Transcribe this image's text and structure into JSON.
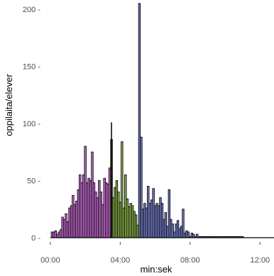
{
  "chart_data": {
    "type": "bar",
    "xlabel": "min:sek",
    "ylabel": "oppilaita/elever",
    "xlim": [
      -0.2,
      12.8
    ],
    "ylim": [
      0,
      208
    ],
    "x_ticks": [
      0,
      4,
      8,
      12
    ],
    "x_tick_labels": [
      "00:00",
      "04:00",
      "08:00",
      "12:00"
    ],
    "y_ticks": [
      0,
      50,
      100,
      150,
      200
    ],
    "y_tick_labels": [
      "0 -",
      "50 -",
      "100 -",
      "150 -",
      "200 -"
    ],
    "bin_width_minutes": 0.1,
    "reference_line_x": 3.5,
    "reference_line_top": 101,
    "series": [
      {
        "color": "#cc6fd6",
        "x": [
          0.1,
          0.2,
          0.3,
          0.4,
          0.5,
          0.6,
          0.7,
          0.8,
          0.9,
          1.0,
          1.1,
          1.2,
          1.3,
          1.4,
          1.5,
          1.6,
          1.7,
          1.8,
          1.9,
          2.0,
          2.1,
          2.2,
          2.3,
          2.4,
          2.5,
          2.6,
          2.7,
          2.8,
          2.9,
          3.0,
          3.1,
          3.2,
          3.3,
          3.4
        ],
        "values": [
          5,
          5,
          6,
          3,
          5,
          7,
          18,
          16,
          21,
          14,
          26,
          28,
          37,
          29,
          32,
          42,
          55,
          48,
          55,
          80,
          48,
          52,
          50,
          75,
          48,
          40,
          35,
          50,
          40,
          29,
          52,
          48,
          47,
          61
        ]
      },
      {
        "color": "#8fb84a",
        "x": [
          3.5,
          3.6,
          3.7,
          3.8,
          3.9,
          4.0,
          4.1,
          4.2,
          4.3,
          4.4,
          4.5,
          4.6,
          4.7,
          4.8,
          4.9,
          5.0
        ],
        "values": [
          86,
          35,
          44,
          50,
          40,
          31,
          84,
          26,
          55,
          34,
          27,
          30,
          28,
          23,
          20,
          11
        ]
      },
      {
        "color": "#7b83cf",
        "x": [
          5.1,
          5.2,
          5.3,
          5.4,
          5.5,
          5.6,
          5.7,
          5.8,
          5.9,
          6.0,
          6.1,
          6.2,
          6.3,
          6.4,
          6.5,
          6.6,
          6.7,
          6.8,
          6.9,
          7.0,
          7.1,
          7.2,
          7.3,
          7.4,
          7.5,
          7.6,
          7.7,
          7.8,
          7.9,
          8.0,
          8.1,
          8.2,
          8.3,
          8.4,
          8.5,
          8.6,
          8.7,
          8.8,
          8.9,
          9.0,
          9.1,
          9.2,
          9.3,
          9.4,
          9.5,
          9.6,
          9.7,
          9.8,
          9.9,
          10.0,
          10.1,
          10.2,
          10.3,
          10.4,
          10.5,
          10.6,
          10.7,
          10.8,
          10.9,
          11.0
        ],
        "values": [
          205,
          88,
          25,
          30,
          26,
          45,
          30,
          33,
          43,
          28,
          30,
          28,
          35,
          30,
          16,
          22,
          10,
          42,
          16,
          12,
          5,
          12,
          15,
          8,
          10,
          25,
          4,
          6,
          5,
          1,
          4,
          3,
          1,
          3,
          1,
          1,
          1,
          1,
          1,
          1,
          1,
          1,
          1,
          1,
          1,
          1,
          1,
          1,
          1,
          1,
          1,
          1,
          1,
          1,
          1,
          1,
          1,
          1,
          1,
          1
        ]
      }
    ]
  }
}
